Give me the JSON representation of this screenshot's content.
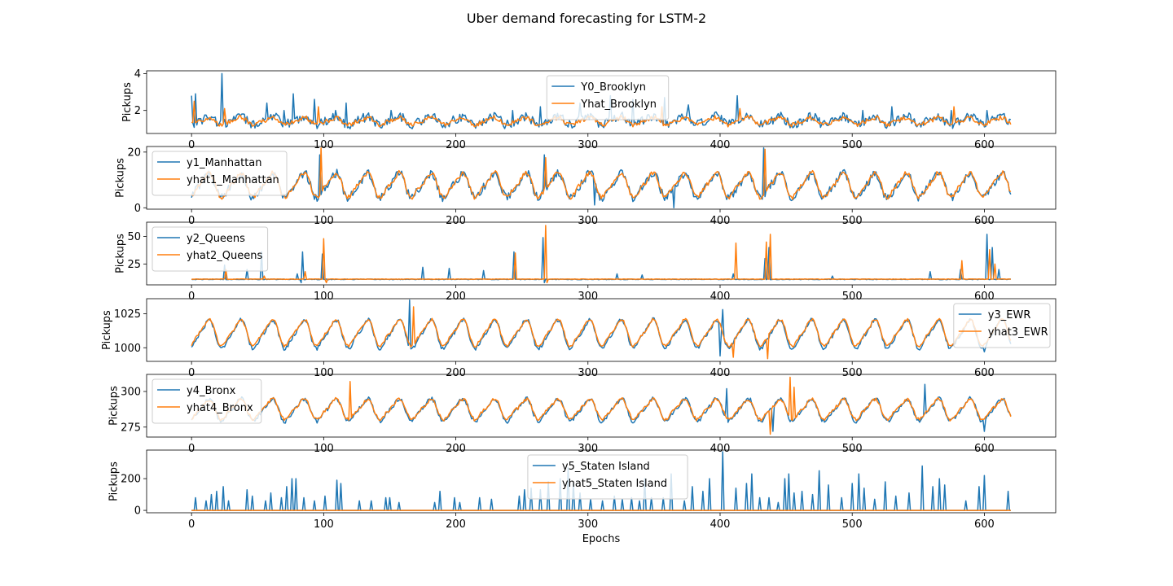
{
  "figure": {
    "title": "Uber demand forecasting for LSTM-2",
    "colors": {
      "actual": "#1f77b4",
      "predicted": "#ff7f0e"
    }
  },
  "chart_data": [
    {
      "type": "line",
      "ylabel": "Pickups",
      "xlabel": "",
      "xlim": [
        -34,
        654
      ],
      "ylim": [
        0.75,
        4.15
      ],
      "xticks": [
        0,
        100,
        200,
        300,
        400,
        500,
        600
      ],
      "yticks": [
        2,
        4
      ],
      "legend": "top-center",
      "n_points": 621,
      "series": [
        {
          "name": "Y0_Brooklyn",
          "role": "actual",
          "color": "#1f77b4",
          "base": 1.45,
          "amp": 0.25,
          "noise": 0.25,
          "spikes": [
            [
              0,
              2.8
            ],
            [
              3,
              2.9
            ],
            [
              23,
              4.0
            ],
            [
              57,
              2.4
            ],
            [
              70,
              2.0
            ],
            [
              77,
              2.9
            ],
            [
              93,
              2.6
            ],
            [
              109,
              2.0
            ],
            [
              117,
              2.4
            ],
            [
              151,
              2.0
            ],
            [
              243,
              2.0
            ],
            [
              264,
              2.2
            ],
            [
              294,
              2.4
            ],
            [
              317,
              2.8
            ],
            [
              334,
              2.6
            ],
            [
              358,
              2.7
            ],
            [
              376,
              2.3
            ],
            [
              413,
              2.8
            ],
            [
              508,
              2.0
            ],
            [
              530,
              2.2
            ],
            [
              575,
              2.0
            ],
            [
              602,
              2.0
            ],
            [
              612,
              1.8
            ]
          ],
          "dips": []
        },
        {
          "name": "Yhat_Brooklyn",
          "role": "predicted",
          "color": "#ff7f0e",
          "base": 1.42,
          "amp": 0.22,
          "noise": 0.12,
          "spikes": [
            [
              2,
              2.5
            ],
            [
              25,
              2.1
            ],
            [
              96,
              2.2
            ],
            [
              356,
              2.2
            ],
            [
              415,
              2.1
            ],
            [
              577,
              2.2
            ]
          ],
          "dips": []
        }
      ]
    },
    {
      "type": "line",
      "ylabel": "Pickups",
      "xlabel": "",
      "xlim": [
        -34,
        654
      ],
      "ylim": [
        -0.5,
        22.0
      ],
      "xticks": [
        0,
        100,
        200,
        300,
        400,
        500,
        600
      ],
      "yticks": [
        0,
        20
      ],
      "legend": "top-left",
      "n_points": 621,
      "series": [
        {
          "name": "y1_Manhattan",
          "role": "actual",
          "color": "#1f77b4",
          "base": 8.0,
          "amp": 5.0,
          "noise": 1.5,
          "spikes": [
            [
              97,
              19.0
            ],
            [
              267,
              19.0
            ],
            [
              433,
              21.5
            ]
          ],
          "dips": [
            [
              305,
              1.0
            ],
            [
              365,
              0.0
            ]
          ]
        },
        {
          "name": "yhat1_Manhattan",
          "role": "predicted",
          "color": "#ff7f0e",
          "base": 8.2,
          "amp": 5.0,
          "noise": 0.8,
          "spikes": [
            [
              98,
              21.5
            ],
            [
              268,
              18.0
            ],
            [
              434,
              21.0
            ]
          ],
          "dips": []
        }
      ]
    },
    {
      "type": "line",
      "ylabel": "Pickups",
      "xlabel": "",
      "xlim": [
        -34,
        654
      ],
      "ylim": [
        6.0,
        63.0
      ],
      "xticks": [
        0,
        100,
        200,
        300,
        400,
        500,
        600
      ],
      "yticks": [
        25,
        50
      ],
      "legend": "top-left",
      "n_points": 621,
      "series": [
        {
          "name": "y2_Queens",
          "role": "actual",
          "color": "#1f77b4",
          "base": 11.0,
          "amp": 0.0,
          "noise": 0.3,
          "spikes": [
            [
              25,
              24.0
            ],
            [
              42,
              20.0
            ],
            [
              53,
              36.0
            ],
            [
              80,
              16.0
            ],
            [
              84,
              36.0
            ],
            [
              99,
              34.0
            ],
            [
              175,
              22.0
            ],
            [
              195,
              21.0
            ],
            [
              221,
              19.0
            ],
            [
              244,
              36.0
            ],
            [
              266,
              49.0
            ],
            [
              322,
              16.0
            ],
            [
              341,
              15.0
            ],
            [
              410,
              16.0
            ],
            [
              434,
              30.0
            ],
            [
              437,
              40.0
            ],
            [
              485,
              14.0
            ],
            [
              559,
              18.0
            ],
            [
              582,
              20.0
            ],
            [
              602,
              52.0
            ],
            [
              606,
              40.0
            ],
            [
              611,
              20.0
            ]
          ],
          "dips": [
            [
              83,
              8.0
            ],
            [
              267,
              8.0
            ]
          ]
        },
        {
          "name": "yhat2_Queens",
          "role": "predicted",
          "color": "#ff7f0e",
          "base": 11.2,
          "amp": 0.0,
          "noise": 0.2,
          "spikes": [
            [
              26,
              20.0
            ],
            [
              55,
              14.0
            ],
            [
              86,
              18.0
            ],
            [
              100,
              48.0
            ],
            [
              245,
              35.0
            ],
            [
              268,
              60.0
            ],
            [
              412,
              44.0
            ],
            [
              435,
              45.0
            ],
            [
              438,
              52.0
            ],
            [
              583,
              28.0
            ],
            [
              604,
              38.0
            ],
            [
              608,
              25.0
            ]
          ],
          "dips": [
            [
              102,
              8.0
            ],
            [
              269,
              8.0
            ]
          ]
        }
      ]
    },
    {
      "type": "line",
      "ylabel": "Pickups",
      "xlabel": "",
      "xlim": [
        -34,
        654
      ],
      "ylim": [
        990.0,
        1036.0
      ],
      "xticks": [
        0,
        100,
        200,
        300,
        400,
        500,
        600
      ],
      "yticks": [
        1000,
        1025
      ],
      "legend": "top-right",
      "n_points": 621,
      "series": [
        {
          "name": "y3_EWR",
          "role": "actual",
          "color": "#1f77b4",
          "base": 1010.0,
          "amp": 12.0,
          "noise": 1.5,
          "spikes": [
            [
              165,
              1035.0
            ],
            [
              402,
              1028.0
            ]
          ],
          "dips": [
            [
              400,
              994.0
            ],
            [
              600,
              997.0
            ]
          ]
        },
        {
          "name": "yhat3_EWR",
          "role": "predicted",
          "color": "#ff7f0e",
          "base": 1011.0,
          "amp": 11.0,
          "noise": 1.0,
          "spikes": [
            [
              168,
              1030.0
            ]
          ],
          "dips": [
            [
              436,
              992.0
            ],
            [
              410,
              993.0
            ]
          ]
        }
      ]
    },
    {
      "type": "line",
      "ylabel": "Pickups",
      "xlabel": "",
      "xlim": [
        -34,
        654
      ],
      "ylim": [
        268.0,
        312.0
      ],
      "xticks": [
        0,
        100,
        200,
        300,
        400,
        500,
        600
      ],
      "yticks": [
        275,
        300
      ],
      "legend": "top-left",
      "n_points": 621,
      "series": [
        {
          "name": "y4_Bronx",
          "role": "actual",
          "color": "#1f77b4",
          "base": 287.0,
          "amp": 9.0,
          "noise": 1.5,
          "spikes": [
            [
              405,
              302.0
            ],
            [
              555,
              305.0
            ]
          ],
          "dips": [
            [
              440,
              272.0
            ],
            [
              600,
              272.0
            ]
          ]
        },
        {
          "name": "yhat4_Bronx",
          "role": "predicted",
          "color": "#ff7f0e",
          "base": 287.5,
          "amp": 8.0,
          "noise": 1.2,
          "spikes": [
            [
              120,
              307.0
            ],
            [
              453,
              310.0
            ],
            [
              456,
              303.0
            ]
          ],
          "dips": [
            [
              438,
              270.0
            ]
          ]
        }
      ]
    },
    {
      "type": "line",
      "ylabel": "Pickups",
      "xlabel": "Epochs",
      "xlim": [
        -34,
        654
      ],
      "ylim": [
        -15.0,
        380.0
      ],
      "xticks": [
        0,
        100,
        200,
        300,
        400,
        500,
        600
      ],
      "yticks": [
        0,
        200
      ],
      "legend": "top-center",
      "n_points": 621,
      "series": [
        {
          "name": "y5_Staten Island",
          "role": "actual",
          "color": "#1f77b4",
          "base": 0.0,
          "amp": 0.0,
          "noise": 0.0,
          "spikes": [
            [
              3,
              80
            ],
            [
              11,
              60
            ],
            [
              15,
              100
            ],
            [
              19,
              120
            ],
            [
              24,
              150
            ],
            [
              28,
              60
            ],
            [
              42,
              130
            ],
            [
              46,
              90
            ],
            [
              56,
              60
            ],
            [
              60,
              110
            ],
            [
              68,
              80
            ],
            [
              72,
              150
            ],
            [
              76,
              200
            ],
            [
              79,
              200
            ],
            [
              85,
              80
            ],
            [
              93,
              60
            ],
            [
              101,
              90
            ],
            [
              110,
              190
            ],
            [
              113,
              170
            ],
            [
              127,
              60
            ],
            [
              136,
              60
            ],
            [
              147,
              80
            ],
            [
              150,
              80
            ],
            [
              157,
              50
            ],
            [
              184,
              50
            ],
            [
              188,
              120
            ],
            [
              199,
              80
            ],
            [
              203,
              50
            ],
            [
              218,
              80
            ],
            [
              227,
              70
            ],
            [
              248,
              90
            ],
            [
              252,
              130
            ],
            [
              257,
              140
            ],
            [
              264,
              130
            ],
            [
              270,
              180
            ],
            [
              279,
              200
            ],
            [
              285,
              270
            ],
            [
              289,
              170
            ],
            [
              294,
              110
            ],
            [
              302,
              70
            ],
            [
              311,
              60
            ],
            [
              320,
              90
            ],
            [
              326,
              70
            ],
            [
              333,
              80
            ],
            [
              339,
              60
            ],
            [
              343,
              200
            ],
            [
              348,
              80
            ],
            [
              357,
              80
            ],
            [
              363,
              230
            ],
            [
              373,
              60
            ],
            [
              379,
              150
            ],
            [
              387,
              120
            ],
            [
              392,
              200
            ],
            [
              402,
              370
            ],
            [
              412,
              140
            ],
            [
              420,
              170
            ],
            [
              424,
              230
            ],
            [
              430,
              80
            ],
            [
              437,
              80
            ],
            [
              444,
              50
            ],
            [
              449,
              200
            ],
            [
              452,
              230
            ],
            [
              456,
              110
            ],
            [
              462,
              120
            ],
            [
              470,
              100
            ],
            [
              475,
              250
            ],
            [
              482,
              160
            ],
            [
              492,
              80
            ],
            [
              500,
              170
            ],
            [
              505,
              230
            ],
            [
              509,
              140
            ],
            [
              517,
              70
            ],
            [
              525,
              180
            ],
            [
              533,
              90
            ],
            [
              543,
              110
            ],
            [
              553,
              280
            ],
            [
              561,
              150
            ],
            [
              566,
              200
            ],
            [
              570,
              160
            ],
            [
              586,
              60
            ],
            [
              596,
              150
            ],
            [
              600,
              220
            ],
            [
              618,
              120
            ]
          ],
          "dips": []
        },
        {
          "name": "yhat5_Staten Island",
          "role": "predicted",
          "color": "#ff7f0e",
          "base": 0.0,
          "amp": 0.0,
          "noise": 0.0,
          "spikes": [],
          "dips": []
        }
      ]
    }
  ]
}
